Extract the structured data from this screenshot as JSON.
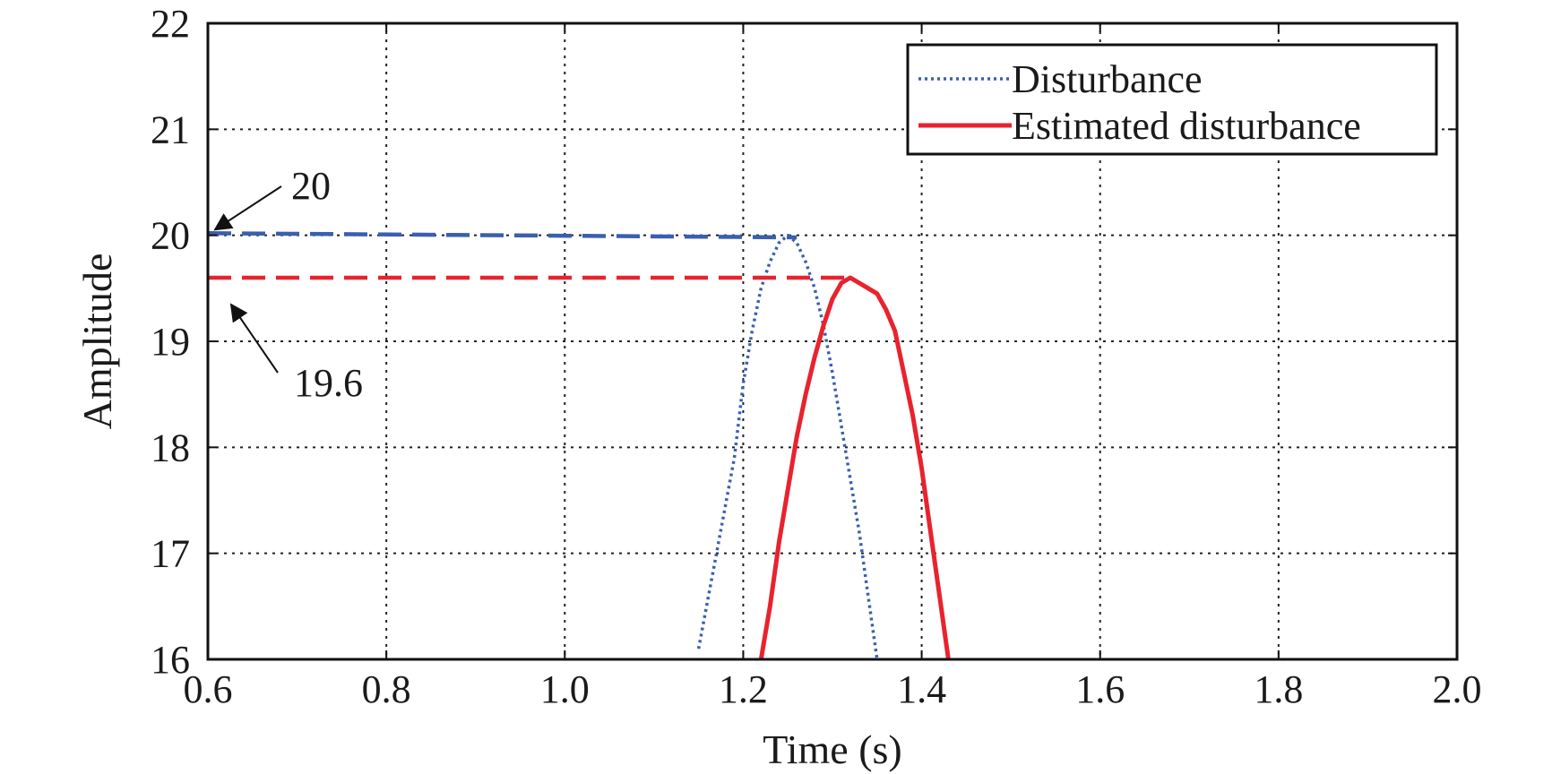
{
  "chart_data": {
    "type": "line",
    "title": "",
    "xlabel": "Time (s)",
    "ylabel": "Amplitude",
    "xlim": [
      0.6,
      2.0
    ],
    "ylim": [
      16,
      22
    ],
    "xticks": [
      0.6,
      0.8,
      1.0,
      1.2,
      1.4,
      1.6,
      1.8,
      2.0
    ],
    "xtick_labels": [
      "0.6",
      "0.8",
      "1.0",
      "1.2",
      "1.4",
      "1.6",
      "1.8",
      "2.0"
    ],
    "yticks": [
      16,
      17,
      18,
      19,
      20,
      21,
      22
    ],
    "ytick_labels": [
      "16",
      "17",
      "18",
      "19",
      "20",
      "21",
      "22"
    ],
    "grid": true,
    "legend_position": "top-right",
    "series": [
      {
        "name": "Disturbance",
        "color": "#3a5fb0",
        "style": "dotted",
        "x": [
          1.15,
          1.17,
          1.19,
          1.2,
          1.21,
          1.22,
          1.23,
          1.24,
          1.25,
          1.26,
          1.27,
          1.28,
          1.29,
          1.3,
          1.31,
          1.32,
          1.33,
          1.34,
          1.35
        ],
        "y": [
          16.1,
          17.0,
          17.9,
          18.6,
          19.1,
          19.5,
          19.75,
          19.93,
          20.0,
          19.93,
          19.75,
          19.5,
          19.15,
          18.7,
          18.2,
          17.7,
          17.2,
          16.6,
          16.0
        ]
      },
      {
        "name": "Estimated disturbance",
        "color": "#e8232e",
        "style": "solid",
        "x": [
          1.22,
          1.23,
          1.24,
          1.25,
          1.26,
          1.27,
          1.28,
          1.29,
          1.3,
          1.31,
          1.32,
          1.33,
          1.34,
          1.35,
          1.36,
          1.37,
          1.38,
          1.39,
          1.4,
          1.41,
          1.42,
          1.43
        ],
        "y": [
          16.0,
          16.5,
          17.1,
          17.6,
          18.1,
          18.5,
          18.85,
          19.15,
          19.4,
          19.55,
          19.6,
          19.55,
          19.5,
          19.45,
          19.3,
          19.1,
          18.7,
          18.3,
          17.8,
          17.2,
          16.6,
          16.0
        ]
      },
      {
        "name": "",
        "color": "#3a5fb0",
        "style": "dashed",
        "x": [
          0.6,
          1.26
        ],
        "y": [
          20.02,
          19.98
        ]
      },
      {
        "name": "",
        "color": "#e8232e",
        "style": "dashed",
        "x": [
          0.6,
          1.32
        ],
        "y": [
          19.6,
          19.6
        ]
      }
    ],
    "annotations": [
      {
        "text": "20",
        "arrow_to": [
          0.6,
          20.02
        ]
      },
      {
        "text": "19.6",
        "arrow_to": [
          0.61,
          19.6
        ]
      }
    ]
  }
}
